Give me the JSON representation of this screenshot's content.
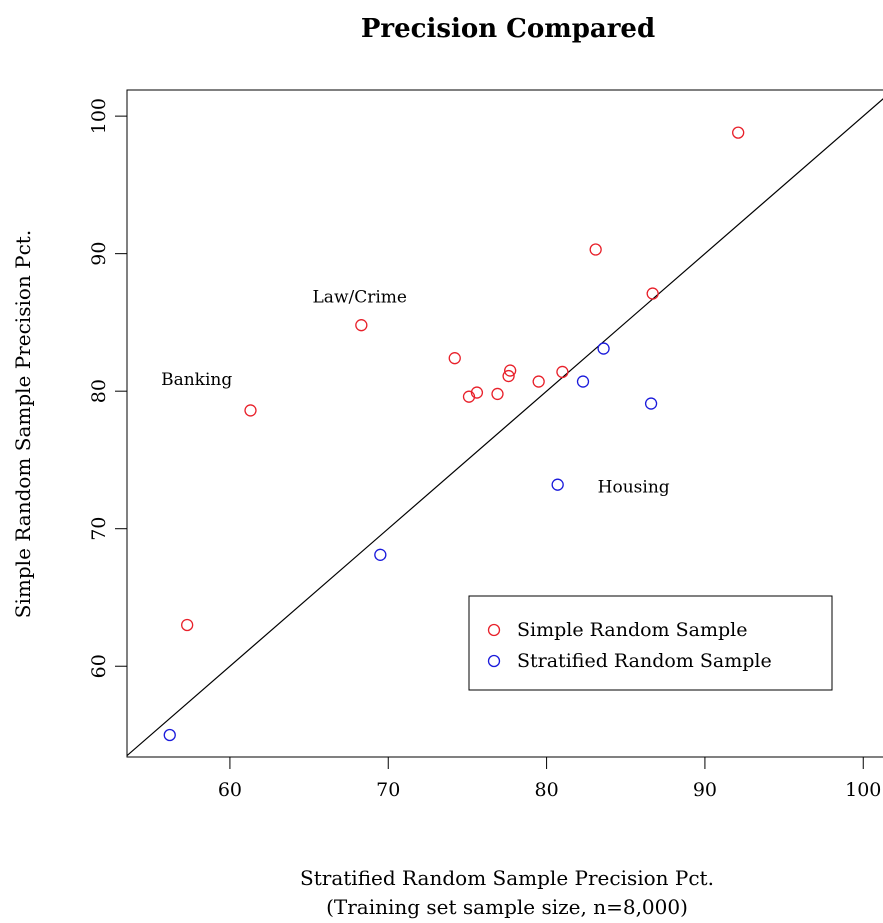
{
  "chart_data": {
    "type": "scatter",
    "title": "Precision Compared",
    "xlabel": "Stratified Random Sample Precision Pct.",
    "xlabel_sub": "(Training set sample size, n=8,000)",
    "ylabel": "Simple Random Sample Precision Pct.",
    "xlim": [
      53.5,
      101.5
    ],
    "ylim": [
      53.4,
      101.9
    ],
    "xticks": [
      60,
      70,
      80,
      90,
      100
    ],
    "yticks": [
      60,
      70,
      80,
      90,
      100
    ],
    "reference_line": "y = x",
    "legend_position": "bottom-right",
    "series": [
      {
        "name": "Simple Random Sample",
        "color": "#e8202a",
        "points": [
          {
            "x": 57.3,
            "y": 63.0
          },
          {
            "x": 61.3,
            "y": 78.6
          },
          {
            "x": 68.3,
            "y": 84.8
          },
          {
            "x": 74.2,
            "y": 82.4
          },
          {
            "x": 75.1,
            "y": 79.6
          },
          {
            "x": 75.6,
            "y": 79.9
          },
          {
            "x": 76.9,
            "y": 79.8
          },
          {
            "x": 77.6,
            "y": 81.1
          },
          {
            "x": 77.7,
            "y": 81.5
          },
          {
            "x": 79.5,
            "y": 80.7
          },
          {
            "x": 81.0,
            "y": 81.4
          },
          {
            "x": 83.1,
            "y": 90.3
          },
          {
            "x": 86.7,
            "y": 87.1
          },
          {
            "x": 92.1,
            "y": 98.8
          }
        ]
      },
      {
        "name": "Stratified Random Sample",
        "color": "#1a1adb",
        "points": [
          {
            "x": 56.2,
            "y": 55.0
          },
          {
            "x": 69.5,
            "y": 68.1
          },
          {
            "x": 80.7,
            "y": 73.2
          },
          {
            "x": 82.3,
            "y": 80.7
          },
          {
            "x": 83.6,
            "y": 83.1
          },
          {
            "x": 86.6,
            "y": 79.1
          }
        ]
      }
    ],
    "annotations": [
      {
        "text": "Law/Crime",
        "x": 68.2,
        "y": 86.8
      },
      {
        "text": "Banking",
        "x": 57.9,
        "y": 80.8
      },
      {
        "text": "Housing",
        "x": 85.5,
        "y": 73.0
      }
    ]
  }
}
